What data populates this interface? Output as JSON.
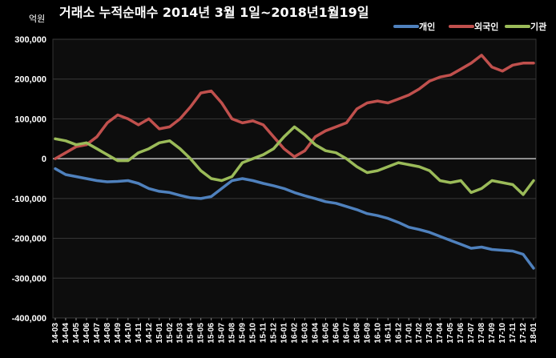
{
  "chart_data": {
    "type": "line",
    "title": "거래소 누적순매수 2014년 3월 1일~2018년1월19일",
    "unit_label": "억원",
    "ylim": [
      -400000,
      300000
    ],
    "y_ticks": [
      "300,000",
      "200,000",
      "100,000",
      "0",
      "-100,000",
      "-200,000",
      "-300,000",
      "-400,000"
    ],
    "y_tick_values": [
      300000,
      200000,
      100000,
      0,
      -100000,
      -200000,
      -300000,
      -400000
    ],
    "x_ticks": [
      "14-03",
      "14-04",
      "14-05",
      "14-06",
      "14-07",
      "14-08",
      "14-09",
      "14-10",
      "14-11",
      "14-12",
      "15-01",
      "15-02",
      "15-03",
      "15-04",
      "15-05",
      "15-06",
      "15-07",
      "15-08",
      "15-09",
      "15-10",
      "15-11",
      "15-12",
      "16-01",
      "16-02",
      "16-03",
      "16-04",
      "16-05",
      "16-06",
      "16-07",
      "16-08",
      "16-09",
      "16-10",
      "16-11",
      "16-12",
      "17-01",
      "17-02",
      "17-03",
      "17-04",
      "17-05",
      "17-06",
      "17-07",
      "17-08",
      "17-09",
      "17-10",
      "17-11",
      "17-12",
      "18-01"
    ],
    "grid": true,
    "legend_position": "top-right",
    "series": [
      {
        "name": "개인",
        "color": "#4f81bd",
        "values": [
          -25000,
          -40000,
          -45000,
          -50000,
          -55000,
          -58000,
          -57000,
          -55000,
          -62000,
          -75000,
          -82000,
          -85000,
          -92000,
          -98000,
          -100000,
          -95000,
          -75000,
          -55000,
          -50000,
          -55000,
          -62000,
          -68000,
          -75000,
          -85000,
          -93000,
          -100000,
          -108000,
          -112000,
          -120000,
          -128000,
          -138000,
          -143000,
          -150000,
          -160000,
          -172000,
          -178000,
          -185000,
          -195000,
          -205000,
          -215000,
          -225000,
          -222000,
          -228000,
          -230000,
          -232000,
          -240000,
          -275000
        ]
      },
      {
        "name": "외국인",
        "color": "#c0504d",
        "values": [
          0,
          15000,
          30000,
          35000,
          55000,
          90000,
          110000,
          100000,
          85000,
          100000,
          75000,
          80000,
          100000,
          130000,
          165000,
          170000,
          140000,
          100000,
          90000,
          95000,
          85000,
          55000,
          25000,
          5000,
          20000,
          55000,
          70000,
          80000,
          90000,
          125000,
          140000,
          145000,
          140000,
          150000,
          160000,
          175000,
          195000,
          205000,
          210000,
          225000,
          240000,
          260000,
          230000,
          220000,
          235000,
          240000,
          240000
        ]
      },
      {
        "name": "기관",
        "color": "#9bbb59",
        "values": [
          50000,
          45000,
          35000,
          40000,
          25000,
          10000,
          -5000,
          -5000,
          15000,
          25000,
          40000,
          45000,
          25000,
          0,
          -30000,
          -50000,
          -55000,
          -45000,
          -10000,
          0,
          10000,
          25000,
          55000,
          80000,
          60000,
          35000,
          20000,
          15000,
          0,
          -20000,
          -35000,
          -30000,
          -20000,
          -10000,
          -15000,
          -20000,
          -30000,
          -55000,
          -60000,
          -55000,
          -85000,
          -75000,
          -55000,
          -60000,
          -65000,
          -90000,
          -55000
        ]
      }
    ]
  }
}
